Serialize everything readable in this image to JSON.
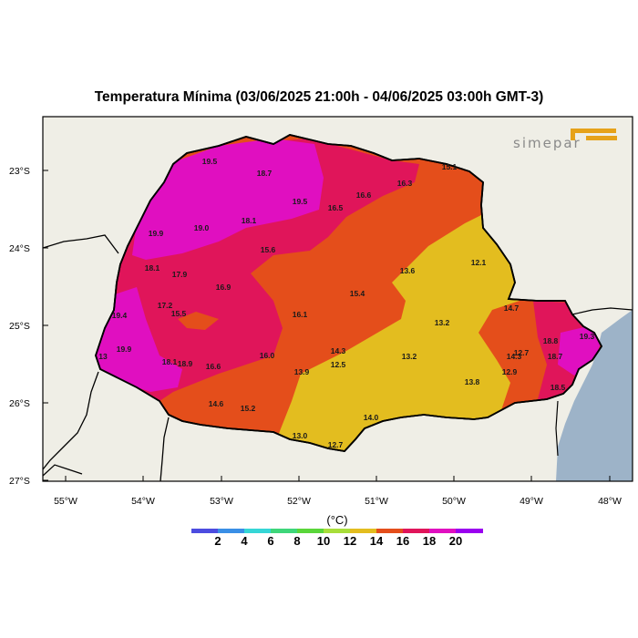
{
  "title": "Temperatura Mínima (03/06/2025 21:00h - 04/06/2025 03:00h GMT-3)",
  "logo": "simepar",
  "y_ticks": [
    "23°S",
    "24°S",
    "25°S",
    "26°S",
    "27°S"
  ],
  "x_ticks": [
    "55°W",
    "54°W",
    "53°W",
    "52°W",
    "51°W",
    "50°W",
    "49°W",
    "48°W"
  ],
  "colorbar": {
    "unit": "(°C)",
    "labels": [
      "2",
      "4",
      "6",
      "8",
      "10",
      "12",
      "14",
      "16",
      "18",
      "20"
    ],
    "colors": [
      "#4c4ce0",
      "#3a8fe6",
      "#36d6d6",
      "#3ed67a",
      "#5ad63a",
      "#a8de3a",
      "#e3bd1f",
      "#e44e1b",
      "#e0155a",
      "#e00fc0",
      "#9a00f0"
    ]
  },
  "station_values": [
    {
      "v": "19.5"
    },
    {
      "v": "18.7"
    },
    {
      "v": "15.1"
    },
    {
      "v": "16.3"
    },
    {
      "v": "16.6"
    },
    {
      "v": "19.5"
    },
    {
      "v": "16.5"
    },
    {
      "v": "18.1"
    },
    {
      "v": "19.9"
    },
    {
      "v": "19.0"
    },
    {
      "v": "15.6"
    },
    {
      "v": "18.1"
    },
    {
      "v": "17.9"
    },
    {
      "v": "13.6"
    },
    {
      "v": "12.1"
    },
    {
      "v": "16.9"
    },
    {
      "v": "15.4"
    },
    {
      "v": "17.2"
    },
    {
      "v": "15.5"
    },
    {
      "v": "19.4"
    },
    {
      "v": "16.1"
    },
    {
      "v": "14.7"
    },
    {
      "v": "13.2"
    },
    {
      "v": "19.9"
    },
    {
      "v": "18.8"
    },
    {
      "v": "19.3"
    },
    {
      "v": "14.3"
    },
    {
      "v": "12.7"
    },
    {
      "v": "16.0"
    },
    {
      "v": "13"
    },
    {
      "v": "18.1"
    },
    {
      "v": "18.9"
    },
    {
      "v": "16.6"
    },
    {
      "v": "12.5"
    },
    {
      "v": "13.2"
    },
    {
      "v": "14.3"
    },
    {
      "v": "18.7"
    },
    {
      "v": "13.9"
    },
    {
      "v": "12.9"
    },
    {
      "v": "13.8"
    },
    {
      "v": "18.5"
    },
    {
      "v": "14.6"
    },
    {
      "v": "15.2"
    },
    {
      "v": "14.0"
    },
    {
      "v": "13.0"
    },
    {
      "v": "12.7"
    }
  ]
}
